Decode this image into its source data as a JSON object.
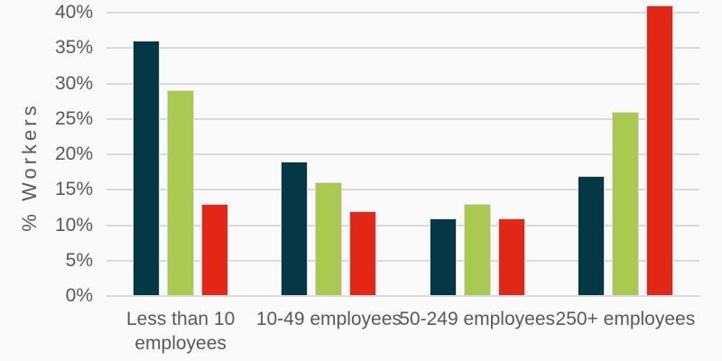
{
  "chart_data": {
    "type": "bar",
    "title": "",
    "xlabel": "",
    "ylabel": "% Workers",
    "categories": [
      "Less than 10 employees",
      "10-49 employees",
      "50-249 employees",
      "250+ employees"
    ],
    "category_wrap": [
      true,
      false,
      false,
      false
    ],
    "series": [
      {
        "name": "dark-teal",
        "color": "#043844",
        "values": [
          36,
          19,
          11,
          17
        ]
      },
      {
        "name": "green",
        "color": "#AAC951",
        "values": [
          29,
          16,
          13,
          26
        ]
      },
      {
        "name": "red",
        "color": "#E22716",
        "values": [
          13,
          12,
          11,
          41
        ]
      }
    ],
    "ylim": [
      0,
      40
    ],
    "ytick_step": 5,
    "ytick_labels": [
      "0%",
      "5%",
      "10%",
      "15%",
      "20%",
      "25%",
      "30%",
      "35%",
      "40%"
    ],
    "grid": true,
    "legend_position": "none"
  },
  "style": {
    "background": "#FAFAFA",
    "gridline_color": "#DBDBDB",
    "text_color": "#595959",
    "bar_border_color": "#D9D9D9"
  }
}
